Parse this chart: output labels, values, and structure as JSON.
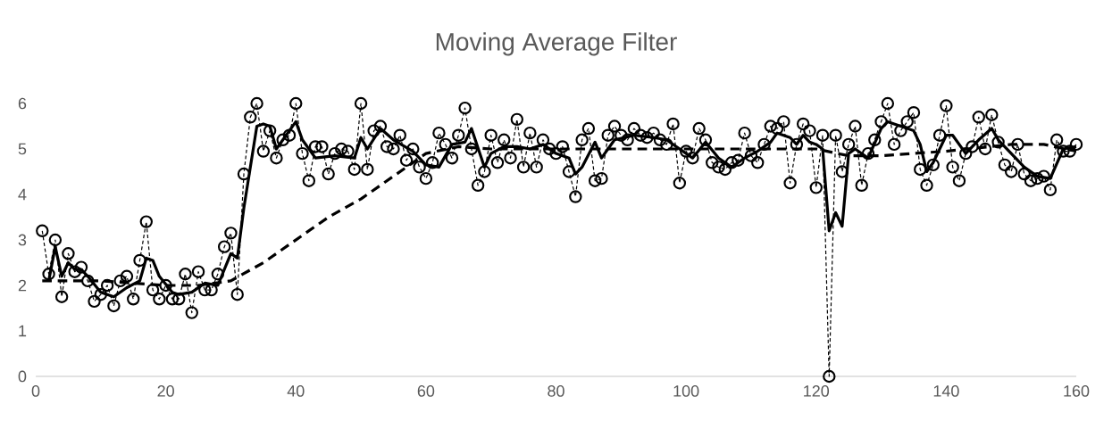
{
  "chart_data": {
    "type": "line",
    "title": "Moving Average Filter",
    "xlim": [
      0,
      160
    ],
    "xticks": [
      0,
      20,
      40,
      60,
      80,
      100,
      120,
      140,
      160
    ],
    "ylim": [
      0,
      6
    ],
    "yticks": [
      0,
      1,
      2,
      3,
      4,
      5,
      6
    ],
    "grid": false,
    "series": [
      {
        "color": "#000000",
        "marker": "circle",
        "line_style": "dashed",
        "x": [
          1,
          2,
          3,
          4,
          5,
          6,
          7,
          8,
          9,
          10,
          11,
          12,
          13,
          14,
          15,
          16,
          17,
          18,
          19,
          20,
          21,
          22,
          23,
          24,
          25,
          26,
          27,
          28,
          29,
          30,
          31,
          32,
          33,
          34,
          35,
          36,
          37,
          38,
          39,
          40,
          41,
          42,
          43,
          44,
          45,
          46,
          47,
          48,
          49,
          50,
          51,
          52,
          53,
          54,
          55,
          56,
          57,
          58,
          59,
          60,
          61,
          62,
          63,
          64,
          65,
          66,
          67,
          68,
          69,
          70,
          71,
          72,
          73,
          74,
          75,
          76,
          77,
          78,
          79,
          80,
          81,
          82,
          83,
          84,
          85,
          86,
          87,
          88,
          89,
          90,
          91,
          92,
          93,
          94,
          95,
          96,
          97,
          98,
          99,
          100,
          101,
          102,
          103,
          104,
          105,
          106,
          107,
          108,
          109,
          110,
          111,
          112,
          113,
          114,
          115,
          116,
          117,
          118,
          119,
          120,
          121,
          122,
          123,
          124,
          125,
          126,
          127,
          128,
          129,
          130,
          131,
          132,
          133,
          134,
          135,
          136,
          137,
          138,
          139,
          140,
          141,
          142,
          143,
          144,
          145,
          146,
          147,
          148,
          149,
          150,
          151,
          152,
          153,
          154,
          155,
          156,
          157,
          158,
          159,
          160
        ],
        "values": [
          3.2,
          2.25,
          3.0,
          1.75,
          2.7,
          2.3,
          2.4,
          2.1,
          1.65,
          1.8,
          2.0,
          1.55,
          2.1,
          2.2,
          1.7,
          2.55,
          3.4,
          1.9,
          1.7,
          2.0,
          1.7,
          1.7,
          2.25,
          1.4,
          2.3,
          1.9,
          1.9,
          2.25,
          2.85,
          3.15,
          1.8,
          4.45,
          5.7,
          6.0,
          4.95,
          5.4,
          4.8,
          5.2,
          5.3,
          6.0,
          4.9,
          4.3,
          5.05,
          5.05,
          4.45,
          4.9,
          5.0,
          4.95,
          4.55,
          6.0,
          4.55,
          5.4,
          5.5,
          5.05,
          5.0,
          5.3,
          4.75,
          5.0,
          4.6,
          4.35,
          4.7,
          5.35,
          5.1,
          4.8,
          5.3,
          5.9,
          5.0,
          4.2,
          4.5,
          5.3,
          4.7,
          5.2,
          4.8,
          5.65,
          4.6,
          5.35,
          4.6,
          5.2,
          5.0,
          4.9,
          5.05,
          4.5,
          3.95,
          5.2,
          5.45,
          4.3,
          4.35,
          5.3,
          5.5,
          5.3,
          5.2,
          5.45,
          5.3,
          5.25,
          5.35,
          5.2,
          5.1,
          5.55,
          4.25,
          4.95,
          4.8,
          5.45,
          5.2,
          4.7,
          4.6,
          4.55,
          4.7,
          4.75,
          5.35,
          4.85,
          4.7,
          5.1,
          5.5,
          5.45,
          5.6,
          4.25,
          5.1,
          5.55,
          5.4,
          4.15,
          5.3,
          0,
          5.3,
          4.5,
          5.1,
          5.5,
          4.2,
          4.9,
          5.2,
          5.6,
          6.0,
          5.1,
          5.4,
          5.6,
          5.8,
          4.55,
          4.2,
          4.65,
          5.3,
          5.95,
          4.6,
          4.3,
          4.9,
          5.05,
          5.7,
          5.0,
          5.75,
          5.15,
          4.65,
          4.5,
          5.1,
          4.45,
          4.3,
          4.35,
          4.4,
          4.1,
          5.2,
          4.95,
          4.95,
          5.1
        ]
      },
      {
        "color": "#000000",
        "marker": "none",
        "line_style": "solid",
        "x": [
          2,
          3,
          4,
          5,
          6,
          7,
          8,
          10,
          12,
          14,
          16,
          17,
          18,
          19,
          21,
          22,
          24,
          26,
          28,
          30,
          31,
          32,
          34,
          35,
          36,
          37,
          38,
          40,
          41,
          43,
          46,
          49,
          50,
          51,
          53,
          55,
          58,
          60,
          62,
          64,
          66,
          67,
          69,
          70,
          72,
          74,
          76,
          78,
          80,
          82,
          83,
          84,
          86,
          87,
          89,
          92,
          95,
          97,
          99,
          101,
          103,
          105,
          107,
          109,
          111,
          113,
          114,
          116,
          117,
          118,
          119,
          120,
          121,
          122,
          123,
          124,
          125,
          126,
          128,
          130,
          131,
          133,
          135,
          136,
          137,
          138,
          140,
          141,
          143,
          145,
          147,
          148,
          150,
          152,
          154,
          156,
          158,
          160
        ],
        "values": [
          2.1,
          2.85,
          2.2,
          2.5,
          2.35,
          2.35,
          2.2,
          1.85,
          1.75,
          1.95,
          2.1,
          2.6,
          2.55,
          2.2,
          1.85,
          1.8,
          1.85,
          2.05,
          2.0,
          2.7,
          2.6,
          3.7,
          5.5,
          5.55,
          5.5,
          5.0,
          5.2,
          5.6,
          5.2,
          4.8,
          4.85,
          4.8,
          5.25,
          5.0,
          5.45,
          5.2,
          4.95,
          4.65,
          4.6,
          5.1,
          5.15,
          5.45,
          4.6,
          4.9,
          5.05,
          5.05,
          5.0,
          5.1,
          4.9,
          4.8,
          4.45,
          4.6,
          5.15,
          4.8,
          5.2,
          5.3,
          5.25,
          5.2,
          5.0,
          4.8,
          5.15,
          4.8,
          4.6,
          4.8,
          4.95,
          5.15,
          5.35,
          5.25,
          5.1,
          5.3,
          5.15,
          5.1,
          5.0,
          3.2,
          3.6,
          3.3,
          4.9,
          5.0,
          4.8,
          5.45,
          5.6,
          5.5,
          5.4,
          5.1,
          4.5,
          4.7,
          5.3,
          5.3,
          4.9,
          5.2,
          5.45,
          5.2,
          4.9,
          4.6,
          4.4,
          4.35,
          5.0,
          5.05
        ]
      },
      {
        "color": "#000000",
        "marker": "none",
        "line_style": "dashed",
        "x": [
          1,
          5,
          10,
          15,
          20,
          25,
          30,
          35,
          40,
          45,
          50,
          55,
          60,
          65,
          70,
          80,
          90,
          100,
          110,
          120,
          125,
          130,
          140,
          150,
          155,
          160
        ],
        "values": [
          2.1,
          2.1,
          2.1,
          2.05,
          2.0,
          2.0,
          2.1,
          2.5,
          3.0,
          3.5,
          3.9,
          4.4,
          4.9,
          5.05,
          5.0,
          5.0,
          5.0,
          5.0,
          5.0,
          5.0,
          4.85,
          4.85,
          4.95,
          5.1,
          5.1,
          4.95
        ]
      }
    ]
  }
}
